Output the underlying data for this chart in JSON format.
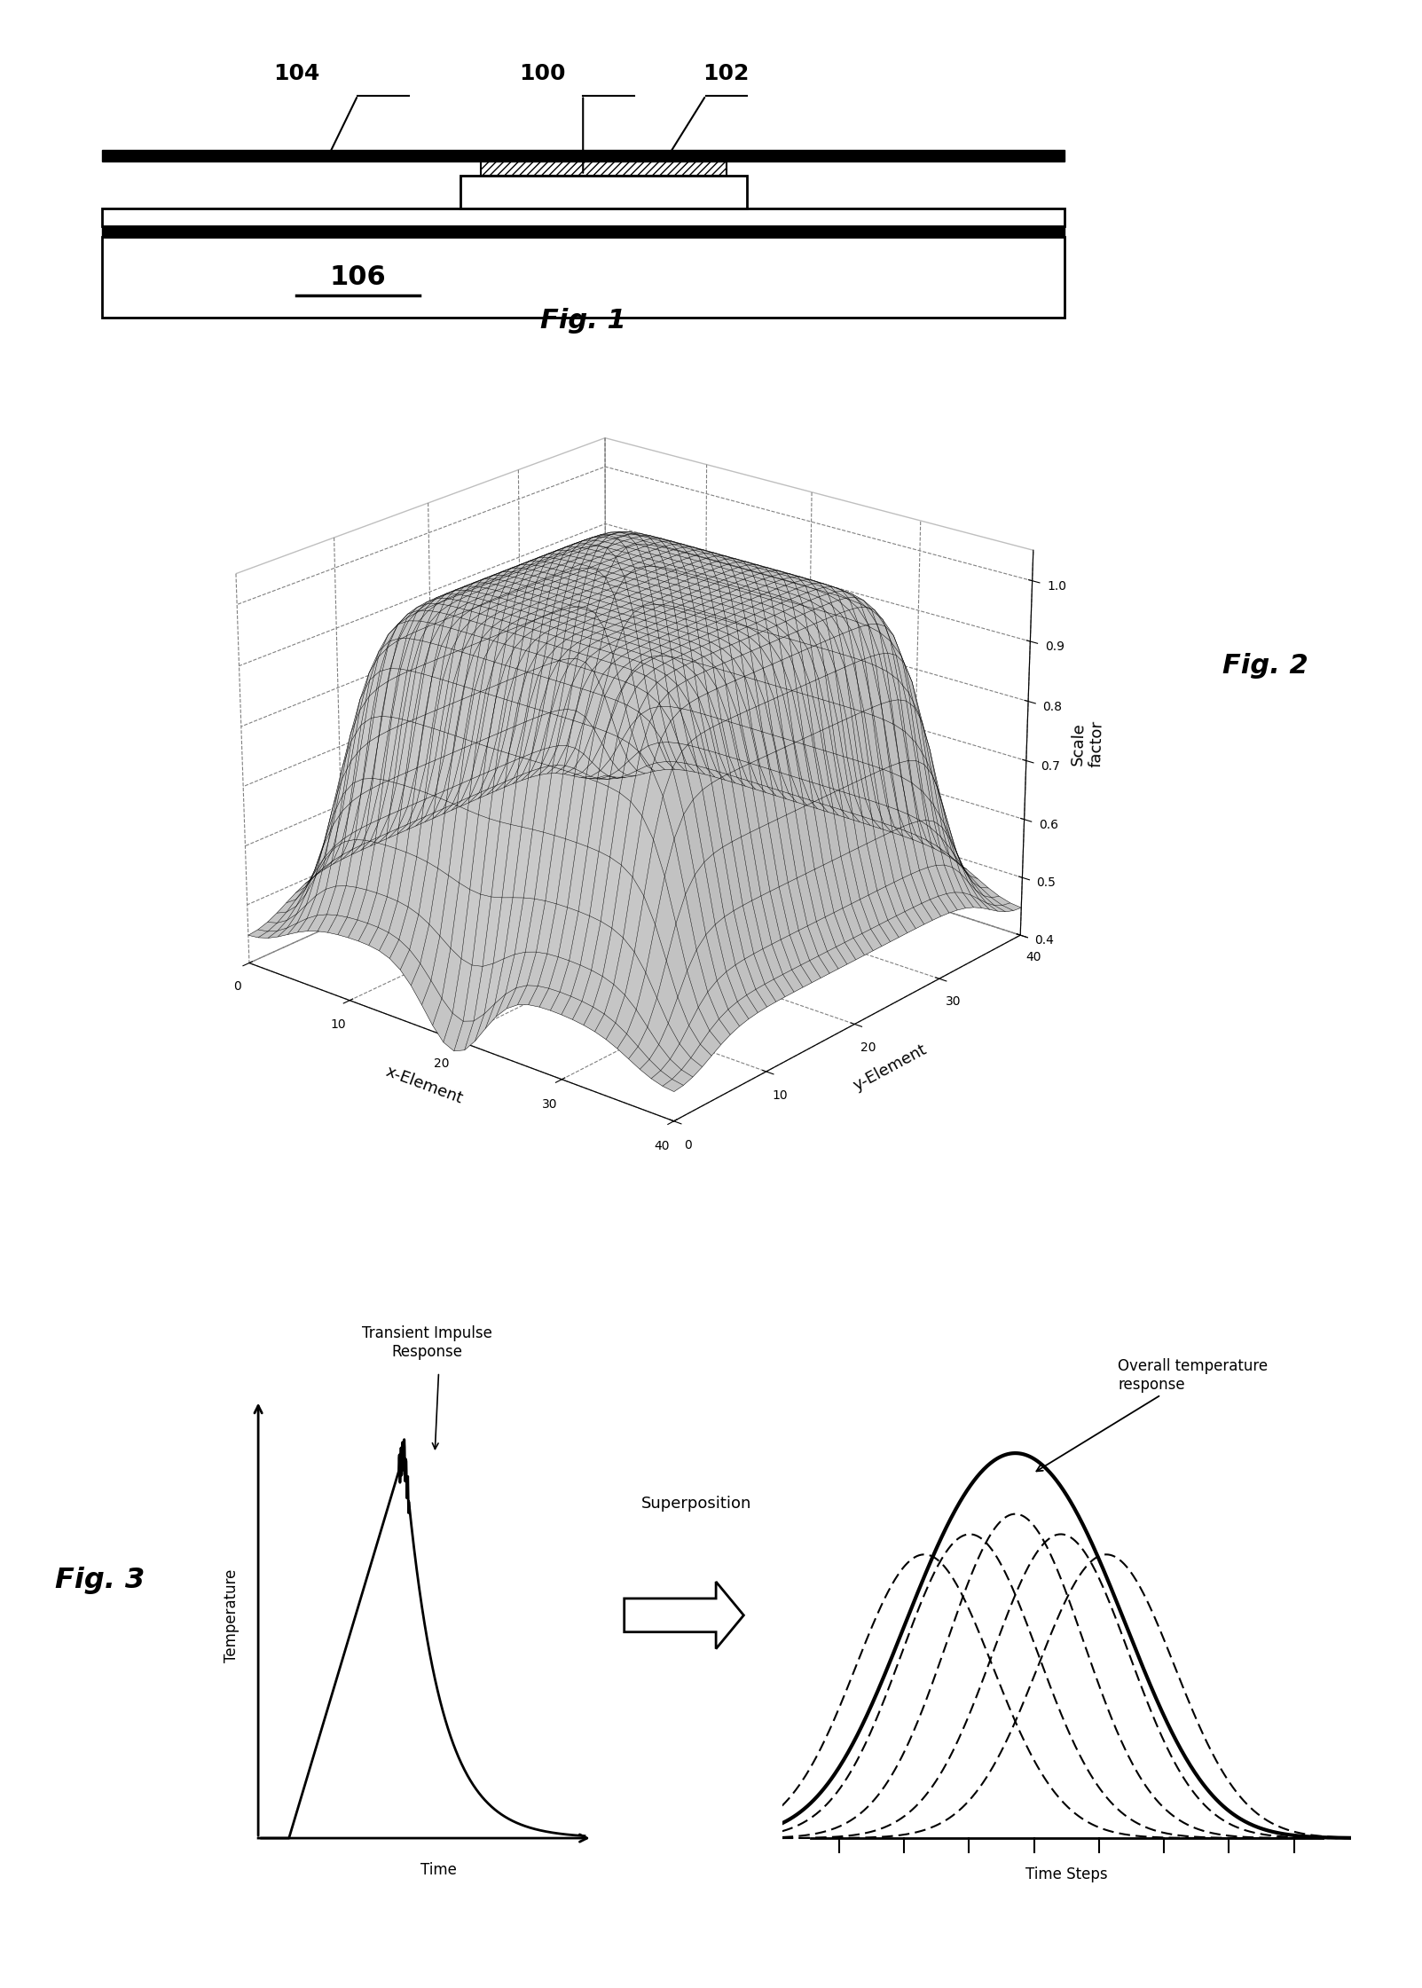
{
  "fig1": {
    "label_104": "104",
    "label_100": "100",
    "label_102": "102",
    "label_106": "106",
    "fig_label": "Fig. 1"
  },
  "fig2": {
    "n": 41,
    "xlabel": "x-Element",
    "ylabel": "y-Element",
    "zlabel": "Scale\nfactor",
    "zticks": [
      0.4,
      0.5,
      0.6,
      0.7,
      0.8,
      0.9,
      1.0
    ],
    "xticks": [
      0,
      10,
      20,
      30,
      40
    ],
    "yticks": [
      0,
      10,
      20,
      30,
      40
    ],
    "fig_label": "Fig. 2",
    "elev": 22,
    "azim": -50
  },
  "fig3": {
    "fig_label": "Fig. 3",
    "left_title": "Transient Impulse\nResponse",
    "left_xlabel": "Time",
    "left_ylabel": "Temperature",
    "middle_label": "Superposition",
    "right_xlabel": "Time Steps",
    "right_annotation": "Overall temperature\nresponse"
  }
}
